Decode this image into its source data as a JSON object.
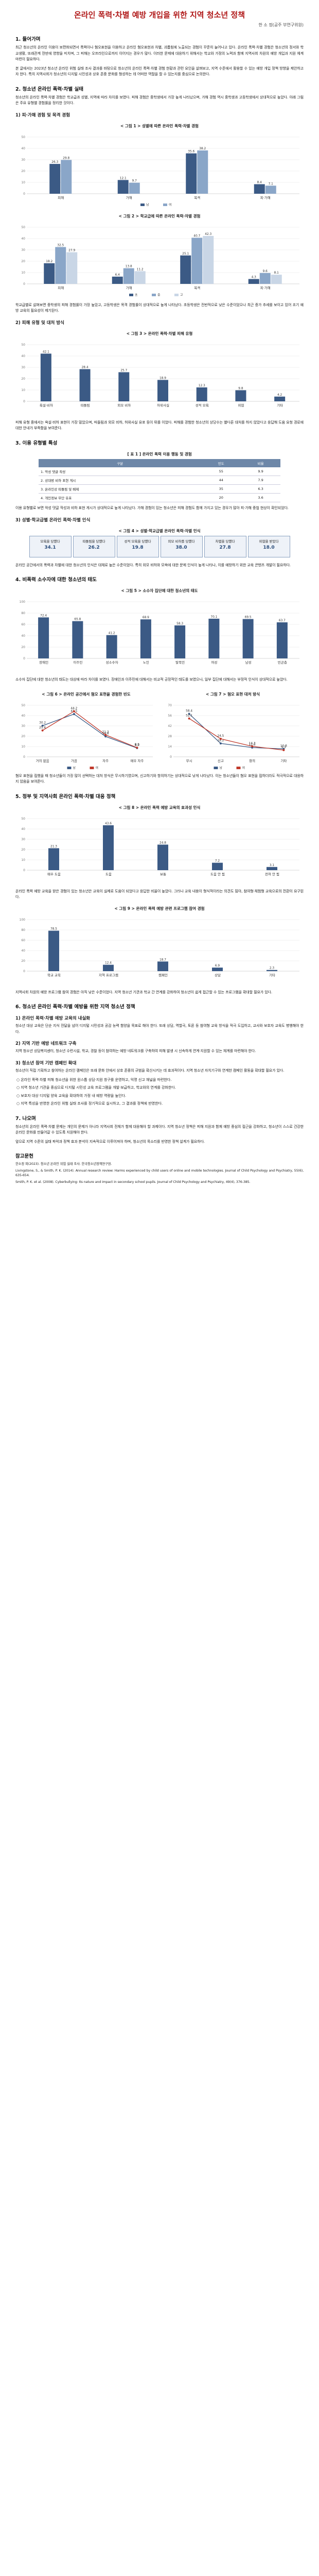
{
  "header": {
    "title": "온라인 폭력·차별 예방 개입을 위한 지역 청소년 정책",
    "author": "한 소 정(공주 부연구위원)"
  },
  "s1": {
    "heading": "1. 들어가며",
    "p1": "최근 청소년의 온라인 이용이 보편화되면서 폭력이나 혐오표현을 이용하고 온라인 혐오표현과 차별, 괴롭힘에 노출되는 경험이 꾸준히 늘어나고 있다. 온라인 폭력·차별 경험은 청소년의 정서와 학교생활, 또래관계 전반에 영향을 미치며, 그 피해는 오프라인으로까지 이어지는 경우가 많다. 이러한 문제에 대응하기 위해서는 학교와 가정의 노력과 함께 지역사회 차원의 예방 개입과 지원 체계 마련이 필요하다.",
    "p2": "본 글에서는 2023년 청소년 온라인 위험 실태 조사 결과를 바탕으로 청소년의 온라인 폭력·차별 경험 현황과 관련 요인을 살펴보고, 지역 수준에서 활용할 수 있는 예방 개입 정책 방향을 제안하고자 한다. 특히 지역사회가 청소년의 디지털 시민성과 상호 존중 문화를 형성하는 데 어떠한 역할을 할 수 있는지를 중심으로 논의한다."
  },
  "s2": {
    "heading": "2. 청소년 온라인 폭력·차별 실태",
    "p1": "청소년의 온라인 폭력·차별 경험은 학교급과 성별, 지역에 따라 차이를 보였다. 피해 경험은 중학생에서 가장 높게 나타났으며, 가해 경험 역시 중학생과 고등학생에서 상대적으로 높았다. 아래 그림은 주요 유형별 경험률을 정리한 것이다.",
    "sub1": "1) 피·가해 경험 및 목격 경험",
    "fig1_cap": "< 그림 1 > 성별에 따른 온라인 폭력·차별 경험",
    "fig2_cap": "< 그림 2 > 학교급에 따른 온라인 폭력·차별 경험",
    "p2": "학교급별로 살펴보면 중학생의 피해 경험률이 가장 높았고, 고등학생은 목격 경험률이 상대적으로 높게 나타났다. 초등학생은 전반적으로 낮은 수준이었으나 최근 증가 추세를 보이고 있어 조기 예방 교육의 필요성이 제기된다.",
    "sub2": "2) 피해 유형 및 대처 방식",
    "fig3_cap": "< 그림 3 > 온라인 폭력·차별 피해 유형",
    "p3": "피해 유형 중에서는 욕설·비하 표현이 가장 많았으며, 따돌림과 외모 비하, 허위사실 유포 등이 뒤를 이었다. 피해를 경험한 청소년의 상당수는 별다른 대처를 하지 않았다고 응답해 도움 요청 경로에 대한 안내가 부족함을 보여준다."
  },
  "s3": {
    "heading": "3. 이용 유형별 특성",
    "table_cap": "[ 표 1 ] 온라인 폭력 이용 행동 및 경험",
    "table_head": [
      "구분",
      "빈도",
      "비율"
    ],
    "table_rows": [
      [
        "1. 악성 댓글 작성",
        "55",
        "9.9"
      ],
      [
        "2. 상대방 비하 표현 게시",
        "44",
        "7.9"
      ],
      [
        "3. 온라인상 따돌림 및 배제",
        "35",
        "6.3"
      ],
      [
        "4. 개인정보 무단 유포",
        "20",
        "3.6"
      ]
    ],
    "p1": "이용 유형별로 보면 악성 댓글 작성과 비하 표현 게시가 상대적으로 높게 나타났다. 가해 경험이 있는 청소년은 피해 경험도 함께 가지고 있는 경우가 많아 피·가해 중첩 현상이 확인되었다.",
    "sub1": "3) 성별·학교급별 온라인 폭력·차별 인식",
    "fig4_cap": "< 그림 4 > 성별·학교급별 온라인 폭력·차별 인식",
    "boxes": [
      {
        "label": "모욕을 당했다",
        "value": "34.1"
      },
      {
        "label": "따돌림을 당했다",
        "value": "26.2"
      },
      {
        "label": "성적 모욕을 당했다",
        "value": "19.8"
      },
      {
        "label": "외모 비하를 당했다",
        "value": "38.0"
      },
      {
        "label": "차별을 당했다",
        "value": "27.8"
      },
      {
        "label": "위협을 받았다",
        "value": "18.0"
      }
    ],
    "p2": "온라인 공간에서의 폭력과 차별에 대한 청소년의 인식은 대체로 높은 수준이었다. 특히 외모 비하와 모욕에 대한 문제 인식이 높게 나타나, 이를 예방하기 위한 교육 콘텐츠 개발이 필요하다."
  },
  "s4": {
    "heading": "4. 비폭력 소수자에 대한 청소년의 태도",
    "fig5_cap": "< 그림 5 > 소수자 집단에 대한 청소년의 태도",
    "p1": "소수자 집단에 대한 청소년의 태도는 대상에 따라 차이를 보였다. 장애인과 이주민에 대해서는 비교적 긍정적인 태도를 보였으나, 일부 집단에 대해서는 부정적 인식이 상대적으로 높았다.",
    "fig6_cap": "< 그림 6 > 온라인 공간에서 혐오 표현을 경험한 빈도",
    "fig7_cap": "< 그림 7 > 혐오 표현 대처 방식",
    "p2": "혐오 표현을 접했을 때 청소년들이 가장 많이 선택하는 대처 방식은 무시하기였으며, 신고하기와 항의하기는 상대적으로 낮게 나타났다. 이는 청소년들이 혐오 표현을 접하더라도 적극적으로 대응하지 않음을 보여준다."
  },
  "s5": {
    "heading": "5. 정부 및 지역사회 온라인 폭력·차별 대응 정책",
    "fig8_cap": "< 그림 8 > 온라인 폭력 예방 교육의 효과성 인식",
    "p1": "온라인 폭력 예방 교육을 받은 경험이 있는 청소년은 교육이 실제로 도움이 되었다고 응답한 비율이 높았다. 그러나 교육 내용이 형식적이라는 의견도 많아, 참여형·체험형 교육으로의 전환이 요구된다.",
    "fig9_cap": "< 그림 9 > 온라인 폭력 예방 관련 프로그램 참여 경험",
    "p2": "지역사회 차원의 예방 프로그램 참여 경험은 아직 낮은 수준이었다. 지역 청소년 기관과 학교 간 연계를 강화하여 청소년이 쉽게 접근할 수 있는 프로그램을 확대할 필요가 있다."
  },
  "s6": {
    "heading": "6. 청소년 온라인 폭력·차별 예방을 위한 지역 청소년 정책",
    "sub1": "1) 온라인 폭력·차별 예방 교육의 내실화",
    "p1": "청소년 대상 교육은 단순 지식 전달을 넘어 디지털 시민성과 공감 능력 함양을 목표로 해야 한다. 또래 상담, 역할극, 토론 등 참여형 교육 방식을 적극 도입하고, 교사와 보호자 교육도 병행해야 한다.",
    "sub2": "2) 지역 기반 예방 네트워크 구축",
    "p2": "지역 청소년 상담복지센터, 청소년 수련시설, 학교, 경찰 등이 참여하는 예방 네트워크를 구축하여 피해 발생 시 신속하게 연계·지원할 수 있는 체계를 마련해야 한다.",
    "sub3": "3) 청소년 참여 기반 캠페인 확대",
    "p3": "청소년이 직접 기획하고 참여하는 온라인 캠페인은 또래 문화 안에서 상호 존중의 규범을 확산시키는 데 효과적이다. 지역 청소년 자치기구와 연계한 캠페인 활동을 확대할 필요가 있다.",
    "bullets": [
      "○ 온라인 폭력·차별 피해 청소년을 위한 원스톱 상담·지원 창구를 운영하고, 익명 신고 채널을 마련한다.",
      "○ 지역 청소년 기관을 중심으로 디지털 시민성 교육 프로그램을 개발·보급하고, 학교와의 연계를 강화한다.",
      "○ 보호자 대상 디지털 양육 교육을 확대하여 가정 내 예방 역량을 높인다.",
      "○ 지역 특성을 반영한 온라인 위험 실태 조사를 정기적으로 실시하고, 그 결과를 정책에 반영한다."
    ]
  },
  "s7": {
    "heading": "7. 나오며",
    "p1": "청소년의 온라인 폭력·차별 문제는 개인의 문제가 아니라 지역사회 전체가 함께 대응해야 할 과제이다. 지역 청소년 정책은 피해 지원과 함께 예방 중심의 접근을 강화하고, 청소년이 스스로 건강한 온라인 문화를 만들어갈 수 있도록 지원해야 한다.",
    "p2": "앞으로 지역 수준의 실태 파악과 정책 효과 분석이 지속적으로 이루어져야 하며, 청소년의 목소리를 반영한 정책 설계가 필요하다."
  },
  "refs": {
    "heading": "참고문헌",
    "items": [
      "한소정 외(2023). 청소년 온라인 위험 실태 조사. 한국청소년정책연구원.",
      "Livingstone, S., & Smith, P. K. (2014). Annual research review: Harms experienced by child users of online and mobile technologies. Journal of Child Psychology and Psychiatry, 55(6), 635-654.",
      "Smith, P. K. et al. (2008). Cyberbullying: Its nature and impact in secondary school pupils. Journal of Child Psychology and Psychiatry, 49(4), 376-385."
    ]
  },
  "colors": {
    "title": "#b01818",
    "bar_dark": "#3b5a85",
    "bar_mid": "#8aa6c8",
    "bar_light": "#c9d6e6",
    "line_red": "#c0392b"
  },
  "chart_data": [
    {
      "type": "bar",
      "categories": [
        "피해",
        "가해",
        "목격",
        "피·가해"
      ],
      "series": [
        {
          "name": "남",
          "values": [
            26.3,
            12.1,
            35.6,
            8.4
          ]
        },
        {
          "name": "여",
          "values": [
            29.8,
            9.7,
            38.2,
            7.1
          ]
        }
      ],
      "ylim": [
        0,
        50
      ]
    },
    {
      "type": "bar",
      "categories": [
        "피해",
        "가해",
        "목격",
        "피·가해"
      ],
      "series": [
        {
          "name": "초",
          "values": [
            18.2,
            6.4,
            25.1,
            4.3
          ]
        },
        {
          "name": "중",
          "values": [
            32.5,
            13.8,
            40.7,
            9.6
          ]
        },
        {
          "name": "고",
          "values": [
            27.9,
            11.2,
            42.3,
            8.1
          ]
        }
      ],
      "ylim": [
        0,
        50
      ]
    },
    {
      "type": "bar",
      "categories": [
        "욕설·비하",
        "따돌림",
        "외모 비하",
        "허위사실",
        "성적 모욕",
        "위협",
        "기타"
      ],
      "values": [
        42.1,
        28.4,
        25.7,
        18.9,
        12.3,
        9.8,
        4.2
      ],
      "ylim": [
        0,
        50
      ]
    },
    {
      "type": "bar",
      "categories": [
        "장애인",
        "이주민",
        "성소수자",
        "노인",
        "탈북민",
        "여성",
        "남성",
        "빈곤층"
      ],
      "values": [
        72.4,
        65.8,
        41.2,
        68.9,
        58.3,
        70.1,
        69.5,
        63.7
      ],
      "ylim": [
        0,
        100
      ]
    },
    {
      "type": "line",
      "categories": [
        "거의 없음",
        "가끔",
        "자주",
        "매우 자주"
      ],
      "series": [
        {
          "name": "남",
          "values": [
            30.2,
            41.5,
            19.8,
            8.5
          ]
        },
        {
          "name": "여",
          "values": [
            25.6,
            44.2,
            21.3,
            8.9
          ]
        }
      ],
      "ylim": [
        0,
        50
      ]
    },
    {
      "type": "line",
      "categories": [
        "무시",
        "신고",
        "항의",
        "기타"
      ],
      "series": [
        {
          "name": "남",
          "values": [
            58.4,
            18.2,
            12.6,
            10.8
          ]
        },
        {
          "name": "여",
          "values": [
            52.1,
            24.5,
            14.3,
            9.1
          ]
        }
      ],
      "ylim": [
        0,
        70
      ]
    },
    {
      "type": "bar",
      "categories": [
        "매우 도움",
        "도움",
        "보통",
        "도움 안 됨",
        "전혀 안 됨"
      ],
      "values": [
        21.3,
        43.6,
        24.8,
        7.2,
        3.1
      ],
      "ylim": [
        0,
        50
      ]
    },
    {
      "type": "bar",
      "categories": [
        "학교 교육",
        "지역 프로그램",
        "캠페인",
        "상담",
        "기타"
      ],
      "values": [
        78.5,
        12.4,
        18.7,
        6.9,
        2.3
      ],
      "ylim": [
        0,
        100
      ]
    }
  ]
}
